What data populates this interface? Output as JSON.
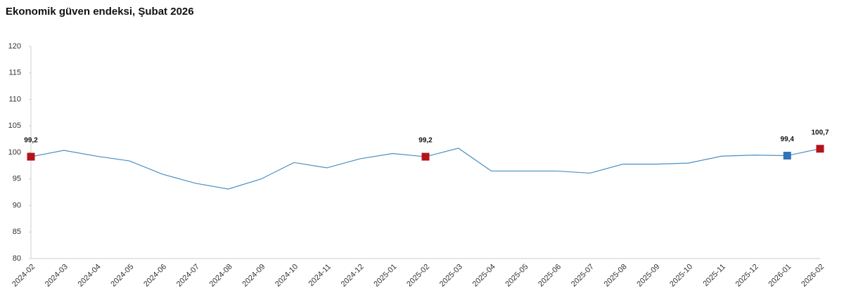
{
  "chart_data": {
    "type": "line",
    "title": "Ekonomik güven endeksi, Şubat 2026",
    "categories": [
      "2024-02",
      "2024-03",
      "2024-04",
      "2024-05",
      "2024-06",
      "2024-07",
      "2024-08",
      "2024-09",
      "2024-10",
      "2024-11",
      "2024-12",
      "2025-01",
      "2025-02",
      "2025-03",
      "2025-04",
      "2025-05",
      "2025-06",
      "2025-07",
      "2025-08",
      "2025-09",
      "2025-10",
      "2025-11",
      "2025-12",
      "2026-01",
      "2026-02"
    ],
    "values": [
      99.2,
      100.4,
      99.3,
      98.4,
      95.9,
      94.2,
      93.1,
      95.0,
      98.1,
      97.1,
      98.8,
      99.8,
      99.2,
      100.8,
      96.5,
      96.5,
      96.5,
      96.1,
      97.8,
      97.8,
      98.0,
      99.3,
      99.5,
      99.4,
      100.7
    ],
    "value_labels": [
      "99,2",
      null,
      null,
      null,
      null,
      null,
      null,
      null,
      null,
      null,
      null,
      null,
      "99,2",
      null,
      null,
      null,
      null,
      null,
      null,
      null,
      null,
      null,
      null,
      "99,4",
      "100,7"
    ],
    "marker_colors": [
      "#b5121b",
      null,
      null,
      null,
      null,
      null,
      null,
      null,
      null,
      null,
      null,
      null,
      "#b5121b",
      null,
      null,
      null,
      null,
      null,
      null,
      null,
      null,
      null,
      null,
      "#2e75b6",
      "#b5121b"
    ],
    "color": "#4a8fc4",
    "ylim": [
      80,
      120
    ],
    "yticks": [
      80,
      85,
      90,
      95,
      100,
      105,
      110,
      115,
      120
    ],
    "grid": false
  }
}
